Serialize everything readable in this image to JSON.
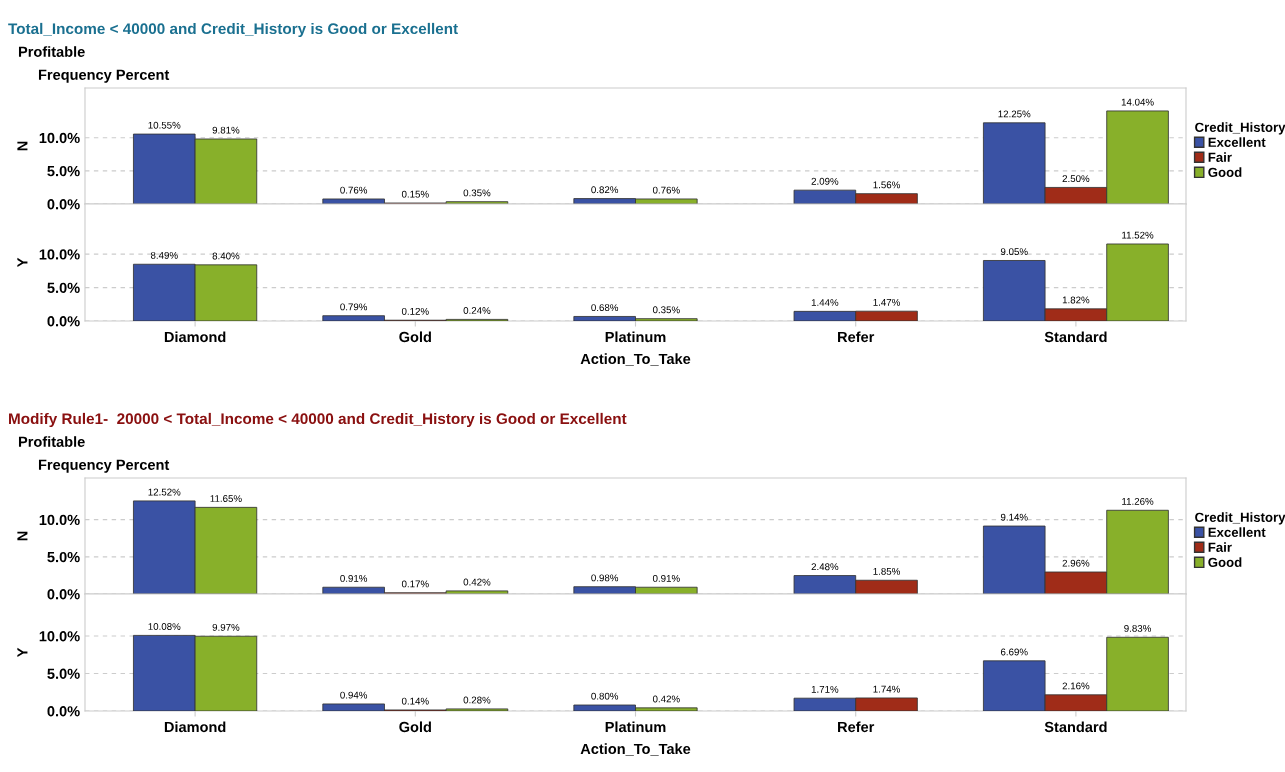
{
  "chart_data": [
    {
      "type": "bar",
      "title": "Total_Income < 40000 and Credit_History is Good or Excellent",
      "subtitle": "Profitable",
      "annotations": [
        "Frequency Percent"
      ],
      "ylabel": "N",
      "legend_title": "Credit_History",
      "legend": "right",
      "grid": "y",
      "tick_labels": "y",
      "categories": [
        null,
        null,
        null,
        null,
        null
      ],
      "ylim": [
        0,
        17.5
      ],
      "yticks": [
        {
          "value": 0,
          "label": "0.0%"
        },
        {
          "value": 5,
          "label": "5.0%"
        },
        {
          "value": 10,
          "label": "10.0%"
        }
      ],
      "series": [
        {
          "name": "Excellent",
          "color": "#3a52a4",
          "values": [
            10.55,
            0.76,
            0.82,
            2.09,
            12.25
          ],
          "value_labels": [
            "10.55%",
            "0.76%",
            "0.82%",
            "2.09%",
            "12.25%"
          ]
        },
        {
          "name": "Fair",
          "color": "#a02c18",
          "values": [
            null,
            0.15,
            null,
            1.56,
            2.5
          ],
          "value_labels": [
            null,
            "0.15%",
            null,
            "1.56%",
            "2.50%"
          ]
        },
        {
          "name": "Good",
          "color": "#88b02a",
          "values": [
            9.81,
            0.35,
            0.76,
            null,
            14.04
          ],
          "value_labels": [
            "9.81%",
            "0.35%",
            "0.76%",
            null,
            "14.04%"
          ]
        }
      ]
    },
    {
      "type": "bar",
      "ylabel": "Y",
      "xlabel": "Action_To_Take",
      "grid": "y",
      "categories": [
        "Diamond",
        "Gold",
        "Platinum",
        "Refer",
        "Standard"
      ],
      "ylim": [
        0,
        17.5
      ],
      "yticks": [
        {
          "value": 0,
          "label": "0.0%"
        },
        {
          "value": 5,
          "label": "5.0%"
        },
        {
          "value": 10,
          "label": "10.0%"
        }
      ],
      "series": [
        {
          "color": "#3a52a4",
          "values": [
            8.49,
            0.79,
            0.68,
            1.44,
            9.05
          ],
          "value_labels": [
            "8.49%",
            "0.79%",
            "0.68%",
            "1.44%",
            "9.05%"
          ]
        },
        {
          "color": "#a02c18",
          "values": [
            null,
            0.12,
            null,
            1.47,
            1.82
          ],
          "value_labels": [
            null,
            "0.12%",
            null,
            "1.47%",
            "1.82%"
          ]
        },
        {
          "color": "#88b02a",
          "values": [
            8.4,
            0.24,
            0.35,
            null,
            11.52
          ],
          "value_labels": [
            "8.40%",
            "0.24%",
            "0.35%",
            null,
            "11.52%"
          ]
        }
      ]
    },
    {
      "type": "bar",
      "title": "Modify Rule1-  20000 < Total_Income < 40000 and Credit_History is Good or Excellent",
      "subtitle": "Profitable",
      "annotations": [
        "Frequency Percent"
      ],
      "ylabel": "N",
      "legend_title": "Credit_History",
      "legend": "right",
      "grid": "y",
      "tick_labels": "y",
      "categories": [
        null,
        null,
        null,
        null,
        null
      ],
      "ylim": [
        0,
        15.6
      ],
      "yticks": [
        {
          "value": 0,
          "label": "0.0%"
        },
        {
          "value": 5,
          "label": "5.0%"
        },
        {
          "value": 10,
          "label": "10.0%"
        }
      ],
      "series": [
        {
          "name": "Excellent",
          "color": "#3a52a4",
          "values": [
            12.52,
            0.91,
            0.98,
            2.48,
            9.14
          ],
          "value_labels": [
            "12.52%",
            "0.91%",
            "0.98%",
            "2.48%",
            "9.14%"
          ]
        },
        {
          "name": "Fair",
          "color": "#a02c18",
          "values": [
            null,
            0.17,
            null,
            1.85,
            2.96
          ],
          "value_labels": [
            null,
            "0.17%",
            null,
            "1.85%",
            "2.96%"
          ]
        },
        {
          "name": "Good",
          "color": "#88b02a",
          "values": [
            11.65,
            0.42,
            0.91,
            null,
            11.26
          ],
          "value_labels": [
            "11.65%",
            "0.42%",
            "0.91%",
            null,
            "11.26%"
          ]
        }
      ]
    },
    {
      "type": "bar",
      "ylabel": "Y",
      "xlabel": "Action_To_Take",
      "grid": "y",
      "categories": [
        "Diamond",
        "Gold",
        "Platinum",
        "Refer",
        "Standard"
      ],
      "ylim": [
        0,
        15.6
      ],
      "yticks": [
        {
          "value": 0,
          "label": "0.0%"
        },
        {
          "value": 5,
          "label": "5.0%"
        },
        {
          "value": 10,
          "label": "10.0%"
        }
      ],
      "series": [
        {
          "color": "#3a52a4",
          "values": [
            10.08,
            0.94,
            0.8,
            1.71,
            6.69
          ],
          "value_labels": [
            "10.08%",
            "0.94%",
            "0.80%",
            "1.71%",
            "6.69%"
          ]
        },
        {
          "color": "#a02c18",
          "values": [
            null,
            0.14,
            null,
            1.74,
            2.16
          ],
          "value_labels": [
            null,
            "0.14%",
            null,
            "1.74%",
            "2.16%"
          ]
        },
        {
          "color": "#88b02a",
          "values": [
            9.97,
            0.28,
            0.42,
            null,
            9.83
          ],
          "value_labels": [
            "9.97%",
            "0.28%",
            "0.42%",
            null,
            "9.83%"
          ]
        }
      ]
    }
  ]
}
